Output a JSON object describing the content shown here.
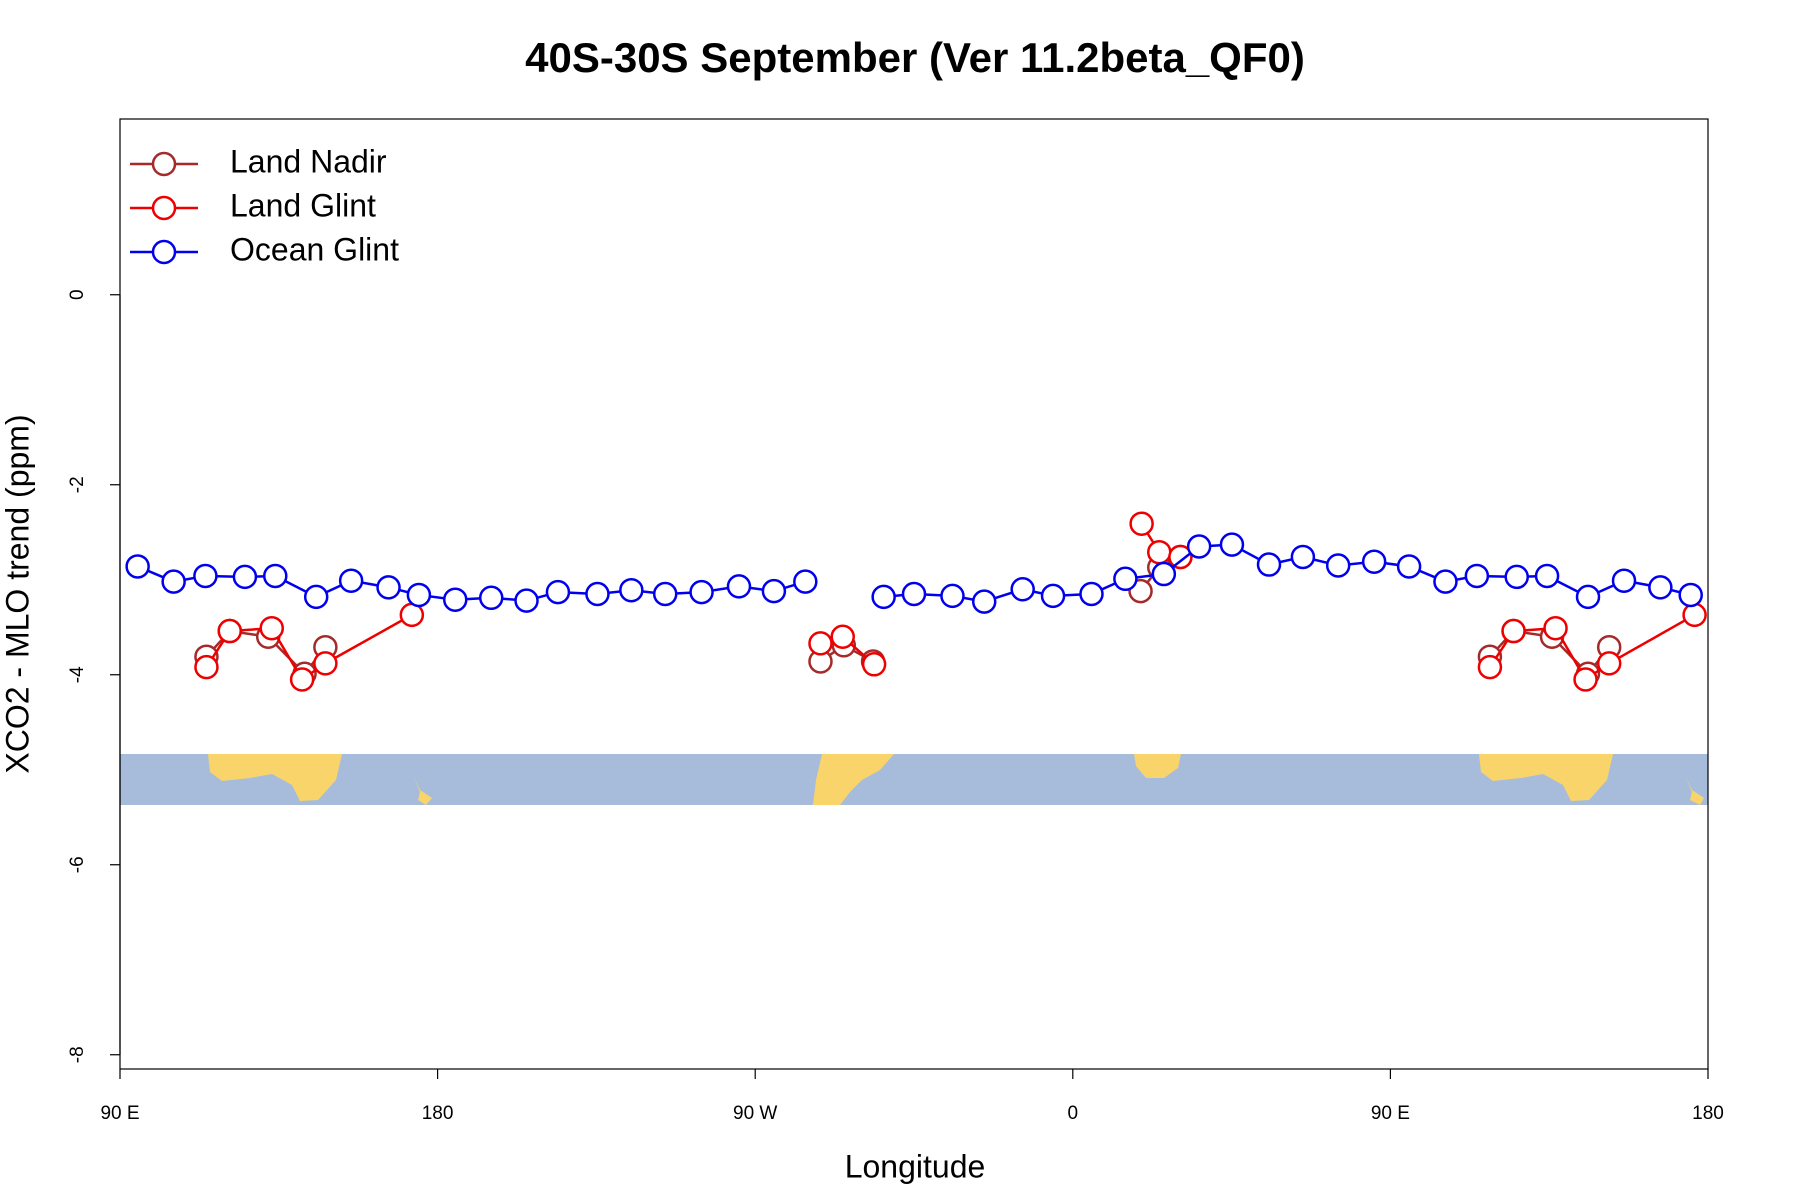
{
  "chart_data": {
    "type": "line",
    "title": "40S-30S September (Ver 11.2beta_QF0)",
    "x_label": "Longitude",
    "y_label": "XCO2 - MLO trend (ppm)",
    "xlim": [
      90,
      540
    ],
    "ylim": [
      -8.15,
      1.85
    ],
    "xticks": [
      {
        "value": 90,
        "label": "90 E"
      },
      180,
      {
        "value": 270,
        "label": "90 W"
      },
      {
        "value": 360,
        "label": "0"
      },
      {
        "value": 450,
        "label": "90 E"
      },
      {
        "value": 540,
        "label": "180"
      }
    ],
    "yticks": [
      -8,
      -6,
      -4,
      -2,
      0
    ],
    "legend": "topleft",
    "series": [
      {
        "name": "Land Nadir",
        "color": "#a52a2a",
        "x": [
          114.5,
          121.1,
          132,
          142.3,
          148.2,
          null,
          288.5,
          295.1,
          303.4,
          null,
          379.2,
          384.5,
          390.5,
          null,
          478.2,
          484.9,
          495.8,
          506,
          512
        ],
        "values": [
          -3.81,
          -3.54,
          -3.6,
          -3.99,
          -3.71,
          null,
          -3.86,
          -3.69,
          -3.86,
          null,
          -3.12,
          -2.87,
          -2.76,
          null,
          -3.81,
          -3.54,
          -3.6,
          -3.99,
          -3.71
        ]
      },
      {
        "name": "Land Glint",
        "color": "#ee0000",
        "x": [
          114.5,
          121.1,
          133,
          141.6,
          148.2,
          172.7,
          null,
          288.5,
          294.8,
          303.7,
          null,
          379.5,
          384.5,
          390.5,
          null,
          478.2,
          484.9,
          496.8,
          505.3,
          512,
          536.2
        ],
        "values": [
          -3.92,
          -3.54,
          -3.51,
          -4.05,
          -3.88,
          -3.37,
          null,
          -3.67,
          -3.6,
          -3.89,
          null,
          -2.41,
          -2.71,
          -2.76,
          null,
          -3.92,
          -3.54,
          -3.51,
          -4.05,
          -3.88,
          -3.37
        ]
      },
      {
        "name": "Ocean Glint",
        "color": "#0000ee",
        "x": [
          95,
          105.2,
          114.2,
          125.4,
          134,
          145.6,
          155.5,
          166.1,
          174.7,
          185,
          195.2,
          205.2,
          214.1,
          225.3,
          234.9,
          244.5,
          254.8,
          265.4,
          275.3,
          284.2,
          null,
          306.4,
          315,
          325.9,
          334.9,
          345.8,
          354.4,
          365.3,
          374.9,
          385.8,
          395.8,
          405.1,
          415.6,
          425.2,
          435.2,
          445.4,
          455.3,
          465.6,
          474.5,
          485.8,
          494.4,
          506,
          516.2,
          526.5,
          535.1
        ],
        "values": [
          -2.86,
          -3.02,
          -2.96,
          -2.97,
          -2.96,
          -3.18,
          -3.01,
          -3.08,
          -3.16,
          -3.21,
          -3.19,
          -3.22,
          -3.13,
          -3.15,
          -3.11,
          -3.15,
          -3.13,
          -3.07,
          -3.12,
          -3.02,
          null,
          -3.18,
          -3.15,
          -3.17,
          -3.23,
          -3.1,
          -3.17,
          -3.15,
          -2.99,
          -2.94,
          -2.65,
          -2.63,
          -2.84,
          -2.76,
          -2.85,
          -2.81,
          -2.86,
          -3.02,
          -2.96,
          -2.97,
          -2.96,
          -3.18,
          -3.01,
          -3.08,
          -3.16
        ]
      }
    ]
  }
}
